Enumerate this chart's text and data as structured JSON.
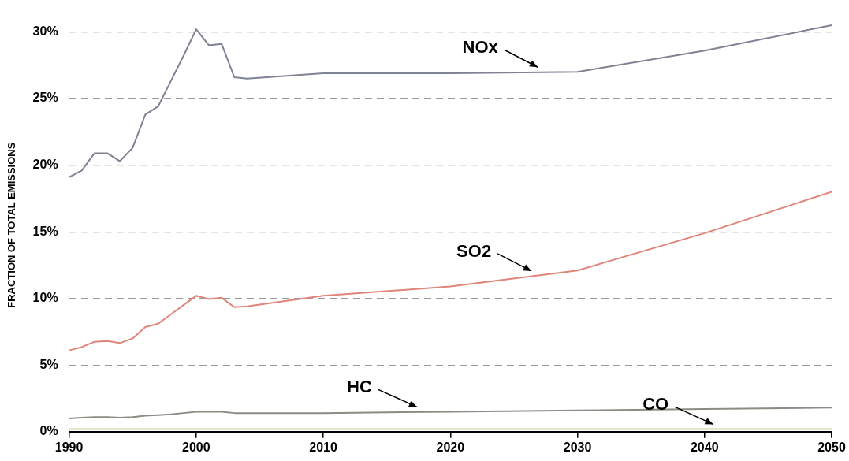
{
  "chart_data": {
    "type": "line",
    "ylabel": "FRACTION OF TOTAL EMISSIONS",
    "x": [
      1990,
      1991,
      1992,
      1993,
      1994,
      1995,
      1996,
      1997,
      1998,
      1999,
      2000,
      2001,
      2002,
      2003,
      2004,
      2010,
      2020,
      2030,
      2040,
      2050
    ],
    "series": [
      {
        "color": "#7f8194",
        "values": [
          19.1,
          19.6,
          20.9,
          20.9,
          20.3,
          21.3,
          23.8,
          24.4,
          26.3,
          28.2,
          30.2,
          29.0,
          29.1,
          26.6,
          26.5,
          26.9,
          26.9,
          27.0,
          28.6,
          30.5
        ]
      },
      {
        "color": "#e0857a",
        "values": [
          6.1,
          6.35,
          6.75,
          6.8,
          6.65,
          7.0,
          7.85,
          8.1,
          8.8,
          9.5,
          10.2,
          9.95,
          10.05,
          9.35,
          9.4,
          10.2,
          10.9,
          12.1,
          14.9,
          18.0
        ]
      },
      {
        "color": "#8c8c84",
        "values": [
          1.0,
          1.05,
          1.1,
          1.1,
          1.05,
          1.1,
          1.2,
          1.25,
          1.3,
          1.4,
          1.5,
          1.5,
          1.5,
          1.4,
          1.4,
          1.4,
          1.5,
          1.6,
          1.7,
          1.8
        ]
      },
      {
        "color": "#c3d69b",
        "values": [
          0.2,
          0.2,
          0.2,
          0.2,
          0.2,
          0.2,
          0.2,
          0.2,
          0.2,
          0.2,
          0.2,
          0.2,
          0.2,
          0.2,
          0.2,
          0.2,
          0.2,
          0.2,
          0.2,
          0.2
        ]
      }
    ],
    "xlim": [
      1990,
      2050
    ],
    "xticks": [
      1990,
      2000,
      2010,
      2020,
      2030,
      2040,
      2050
    ],
    "ylim": [
      0,
      31
    ],
    "yticks": [
      {
        "value": 0,
        "label": "0%"
      },
      {
        "value": 5,
        "label": "5%"
      },
      {
        "value": 10,
        "label": "10%"
      },
      {
        "value": 15,
        "label": "15%"
      },
      {
        "value": 20,
        "label": "20%"
      },
      {
        "value": 25,
        "label": "25%"
      },
      {
        "value": 30,
        "label": "30%"
      }
    ],
    "grid": "y",
    "legend": false,
    "marker": "none",
    "line_style": "solid",
    "annotations": [
      {
        "text": "NOx",
        "x": 2027,
        "y": 27.0
      },
      {
        "text": "SO2",
        "x": 2026.5,
        "y": 11.7
      },
      {
        "text": "HC",
        "x": 2017.5,
        "y": 1.5
      },
      {
        "text": "CO",
        "x": 2040.8,
        "y": 0.2
      }
    ]
  }
}
